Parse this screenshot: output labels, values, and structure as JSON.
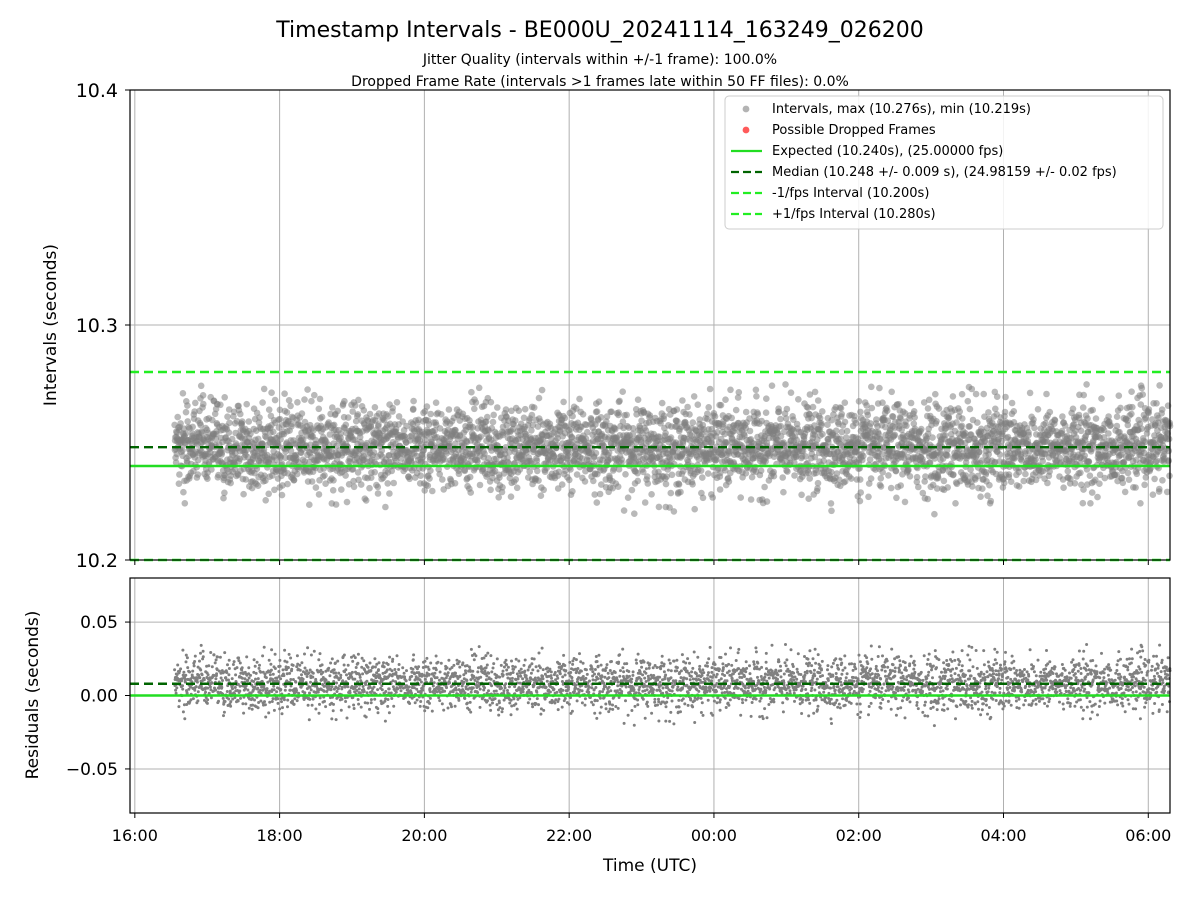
{
  "title": "Timestamp Intervals - BE000U_20241114_163249_026200",
  "subtitle_1": "Jitter Quality (intervals within +/-1 frame): 100.0%",
  "subtitle_2": "Dropped Frame Rate (intervals >1 frames late within 50 FF files): 0.0%",
  "colors": {
    "points": "#808080",
    "dropped": "#ff5a5a",
    "expected": "#22dd22",
    "median": "#006400",
    "bounds": "#22ee22",
    "grid": "#b0b0b0"
  },
  "chart_data": [
    {
      "type": "scatter",
      "panel": "intervals",
      "ylabel": "Intervals (seconds)",
      "ylim": [
        10.2,
        10.4
      ],
      "yticks": [
        "10.2",
        "10.3",
        "10.4"
      ],
      "grid": true,
      "legend_position": "top-right",
      "legend": [
        "Intervals, max (10.276s), min (10.219s)",
        "Possible Dropped Frames",
        "Expected (10.240s), (25.00000 fps)",
        "Median (10.248 +/- 0.009 s), (24.98159 +/- 0.02 fps)",
        "-1/fps Interval (10.200s)",
        "+1/fps Interval (10.280s)"
      ],
      "series": {
        "start_time": "16:33",
        "end_time": "06:18",
        "max": 10.276,
        "min": 10.219,
        "median": 10.248,
        "std": 0.009
      },
      "reference_lines": {
        "expected": 10.24,
        "median": 10.248,
        "minus_one_fps": 10.2,
        "plus_one_fps": 10.28
      },
      "dropped_frames": []
    },
    {
      "type": "scatter",
      "panel": "residuals",
      "xlabel": "Time (UTC)",
      "ylabel": "Residuals (seconds)",
      "ylim": [
        -0.08,
        0.08
      ],
      "yticks": [
        "0.05",
        "0.00",
        "−0.05"
      ],
      "xlim": [
        "15:56",
        "06:18"
      ],
      "xticks": [
        "16:00",
        "18:00",
        "20:00",
        "22:00",
        "00:00",
        "02:00",
        "04:00",
        "06:00"
      ],
      "grid": true,
      "reference_lines": {
        "zero": 0.0,
        "median": 0.008
      }
    }
  ]
}
